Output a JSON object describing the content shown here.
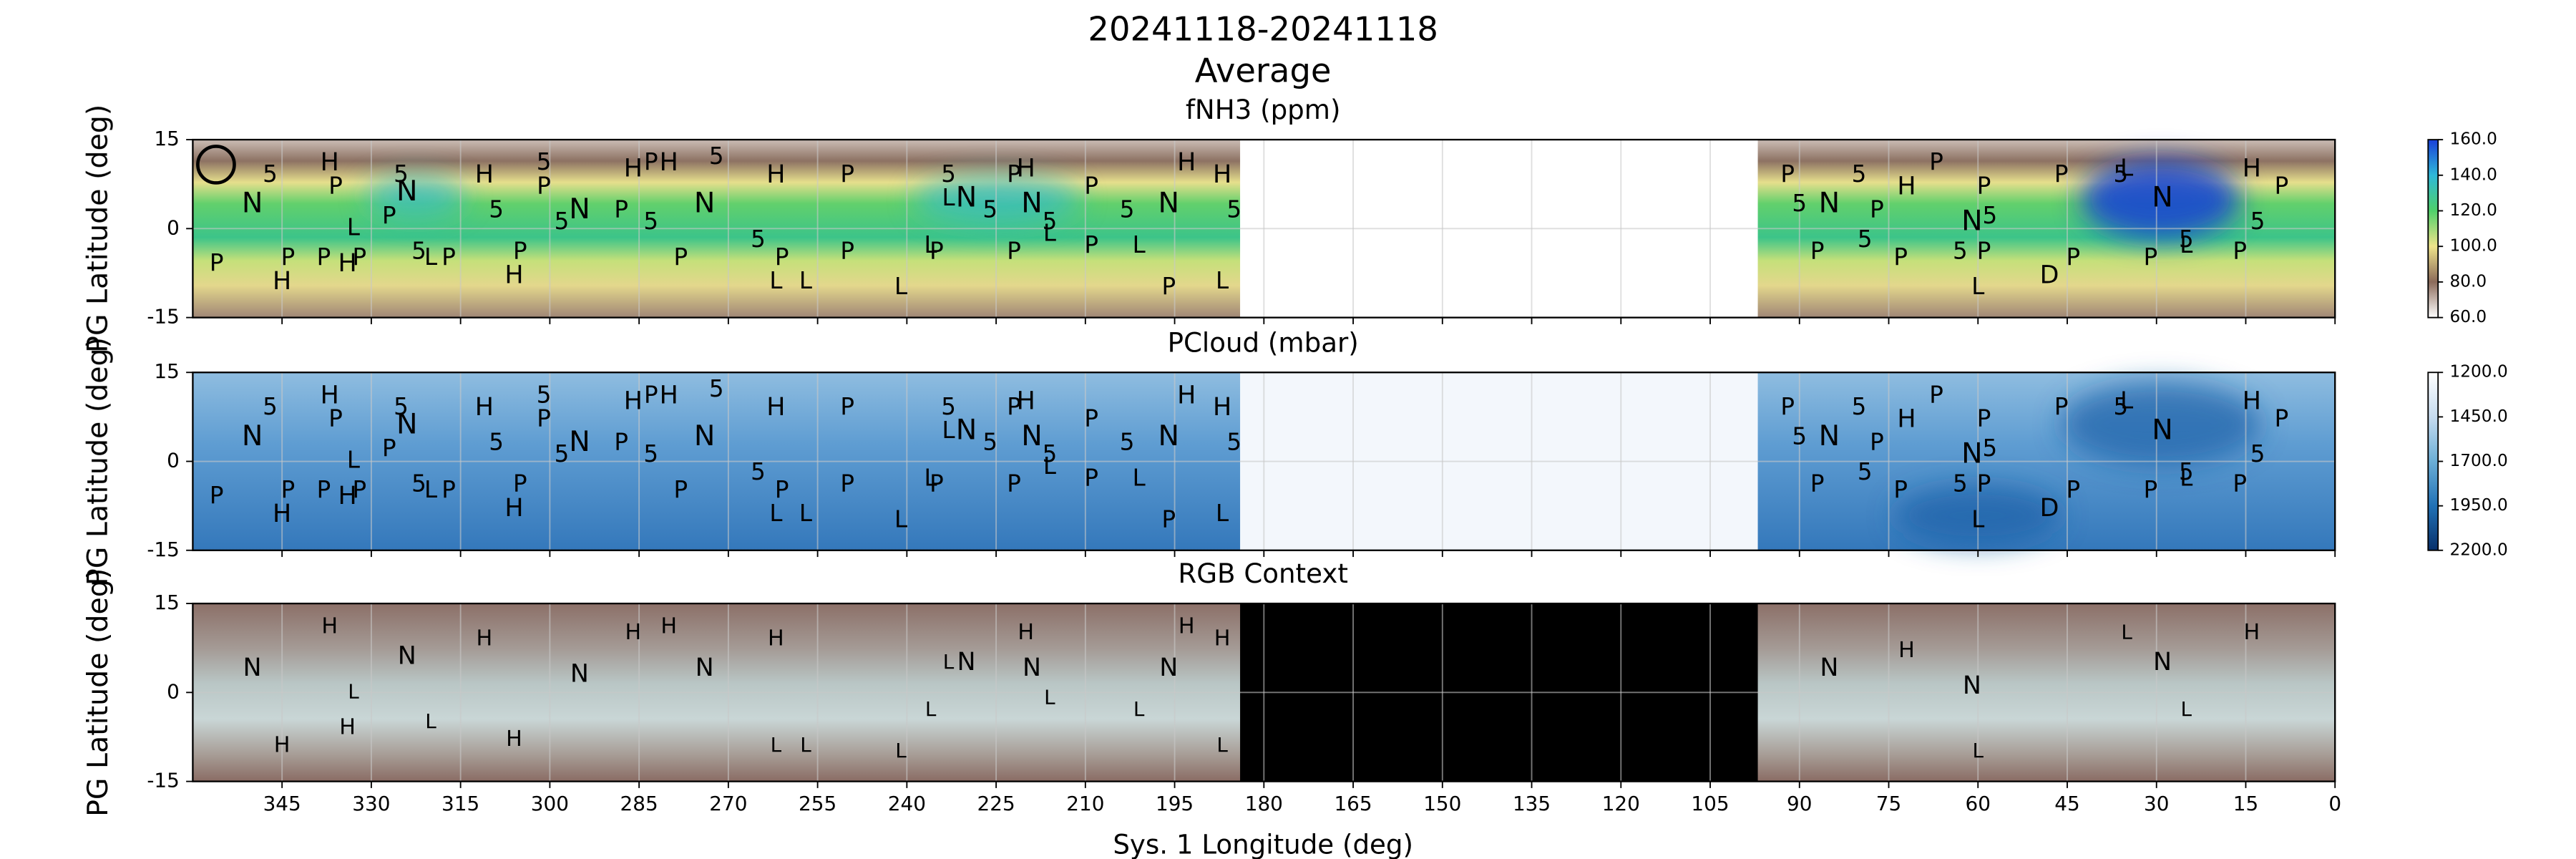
{
  "title": "20241118-20241118",
  "subtitle": "Average",
  "chart_data": [
    {
      "type": "heatmap",
      "title": "fNH3 (ppm)",
      "ylabel": "PG Latitude (deg)",
      "xlim": [
        360,
        0
      ],
      "xticks": [
        0,
        15,
        30,
        45,
        60,
        75,
        90,
        105,
        120,
        135,
        150,
        165,
        180,
        195,
        210,
        225,
        240,
        255,
        270,
        285,
        300,
        315,
        330,
        345
      ],
      "ylim": [
        -15,
        15
      ],
      "yticks": [
        -15,
        0,
        15
      ],
      "grid": true,
      "nodata_lon": [
        184,
        97
      ],
      "nodata_color": "#ffffff",
      "colorbar": {
        "lim": [
          60,
          160
        ],
        "colors": [
          "#ffffff",
          "#8b6a5a",
          "#efe48a",
          "#4fd06a",
          "#2fb8d8",
          "#1a3fd8"
        ],
        "ticks": [
          {
            "value": 60,
            "label": "60.0"
          },
          {
            "value": 80,
            "label": "80.0"
          },
          {
            "value": 100,
            "label": "100.0"
          },
          {
            "value": 120,
            "label": "120.0"
          },
          {
            "value": 140,
            "label": "140.0"
          },
          {
            "value": 160,
            "label": "160.0"
          }
        ]
      }
    },
    {
      "type": "heatmap",
      "title": "PCloud (mbar)",
      "ylabel": "PG Latitude (deg)",
      "xlim": [
        360,
        0
      ],
      "xticks": [
        0,
        15,
        30,
        45,
        60,
        75,
        90,
        105,
        120,
        135,
        150,
        165,
        180,
        195,
        210,
        225,
        240,
        255,
        270,
        285,
        300,
        315,
        330,
        345
      ],
      "ylim": [
        -15,
        15
      ],
      "yticks": [
        -15,
        0,
        15
      ],
      "grid": true,
      "nodata_lon": [
        184,
        97
      ],
      "nodata_color": "#f3f7fc",
      "colorbar": {
        "lim": [
          2200,
          1200
        ],
        "colors": [
          "#08306b",
          "#2171b5",
          "#6baed6",
          "#c6dbef",
          "#ffffff"
        ],
        "ticks": [
          {
            "value": 1200,
            "label": "1200.0"
          },
          {
            "value": 1450,
            "label": "1450.0"
          },
          {
            "value": 1700,
            "label": "1700.0"
          },
          {
            "value": 1950,
            "label": "1950.0"
          },
          {
            "value": 2200,
            "label": "2200.0"
          }
        ]
      }
    },
    {
      "type": "heatmap",
      "title": "RGB Context",
      "ylabel": "PG Latitude (deg)",
      "xlabel": "Sys. 1 Longitude (deg)",
      "show_xtick_labels": true,
      "xlim": [
        360,
        0
      ],
      "xticks": [
        0,
        15,
        30,
        45,
        60,
        75,
        90,
        105,
        120,
        135,
        150,
        165,
        180,
        195,
        210,
        225,
        240,
        255,
        270,
        285,
        300,
        315,
        330,
        345
      ],
      "ylim": [
        -15,
        15
      ],
      "yticks": [
        -15,
        0,
        15
      ],
      "grid": true,
      "nodata_lon": [
        184,
        97
      ],
      "nodata_color": "#000000"
    }
  ],
  "markers": [
    {
      "label": "N",
      "color": "#ffffff",
      "size": 17,
      "panels": [
        0,
        1,
        2
      ],
      "points": [
        [
          350,
          4
        ],
        [
          324,
          6
        ],
        [
          295,
          3
        ],
        [
          274,
          4
        ],
        [
          230,
          5
        ],
        [
          219,
          4
        ],
        [
          196,
          4
        ],
        [
          85,
          4
        ],
        [
          61,
          1
        ],
        [
          29,
          5
        ]
      ]
    },
    {
      "label": "H",
      "color": "#1515e0",
      "size": 15,
      "panels": [
        0,
        1,
        2
      ],
      "points": [
        [
          337,
          11
        ],
        [
          311,
          9
        ],
        [
          286,
          10
        ],
        [
          280,
          11
        ],
        [
          262,
          9
        ],
        [
          220,
          10
        ],
        [
          193,
          11
        ],
        [
          187,
          9
        ],
        [
          345,
          -9
        ],
        [
          334,
          -6
        ],
        [
          306,
          -8
        ],
        [
          72,
          7
        ],
        [
          14,
          10
        ]
      ]
    },
    {
      "label": "P",
      "color": "#2a78b8",
      "size": 14,
      "panels": [
        0,
        1
      ],
      "points": [
        [
          336,
          7
        ],
        [
          327,
          2
        ],
        [
          301,
          7
        ],
        [
          288,
          3
        ],
        [
          283,
          11
        ],
        [
          250,
          9
        ],
        [
          222,
          9
        ],
        [
          209,
          7
        ],
        [
          356,
          -6
        ],
        [
          344,
          -5
        ],
        [
          338,
          -5
        ],
        [
          332,
          -5
        ],
        [
          317,
          -5
        ],
        [
          305,
          -4
        ],
        [
          278,
          -5
        ],
        [
          261,
          -5
        ],
        [
          250,
          -4
        ],
        [
          235,
          -4
        ],
        [
          222,
          -4
        ],
        [
          209,
          -3
        ],
        [
          196,
          -10
        ],
        [
          92,
          9
        ],
        [
          77,
          3
        ],
        [
          87,
          -4
        ],
        [
          73,
          -5
        ],
        [
          67,
          11
        ],
        [
          59,
          7
        ],
        [
          59,
          -4
        ],
        [
          46,
          9
        ],
        [
          9,
          7
        ],
        [
          44,
          -5
        ],
        [
          31,
          -5
        ],
        [
          16,
          -4
        ]
      ]
    },
    {
      "label": "5",
      "color": "#f07d18",
      "size": 14,
      "panels": [
        0,
        1
      ],
      "points": [
        [
          347,
          9
        ],
        [
          325,
          9
        ],
        [
          309,
          3
        ],
        [
          301,
          11
        ],
        [
          298,
          1
        ],
        [
          283,
          1
        ],
        [
          272,
          12
        ],
        [
          265,
          -2
        ],
        [
          322,
          -4
        ],
        [
          233,
          9
        ],
        [
          226,
          3
        ],
        [
          216,
          1
        ],
        [
          203,
          3
        ],
        [
          185,
          3
        ],
        [
          90,
          4
        ],
        [
          80,
          9
        ],
        [
          79,
          -2
        ],
        [
          58,
          2
        ],
        [
          63,
          -4
        ],
        [
          36,
          9
        ],
        [
          13,
          1
        ],
        [
          25,
          -2
        ]
      ]
    },
    {
      "label": "L",
      "color": "#bcbd22",
      "size": 14,
      "panels": [
        0,
        1,
        2
      ],
      "points": [
        [
          333,
          0
        ],
        [
          320,
          -5
        ],
        [
          262,
          -9
        ],
        [
          257,
          -9
        ],
        [
          241,
          -10
        ],
        [
          201,
          -3
        ],
        [
          187,
          -9
        ],
        [
          60,
          -10
        ],
        [
          25,
          -3
        ],
        [
          233,
          5
        ],
        [
          216,
          -1
        ],
        [
          236,
          -3
        ],
        [
          35,
          10
        ]
      ]
    },
    {
      "label": "D",
      "color": "#000000",
      "size": 15,
      "panels": [
        0,
        1
      ],
      "points": [
        [
          48,
          -8
        ]
      ]
    }
  ]
}
